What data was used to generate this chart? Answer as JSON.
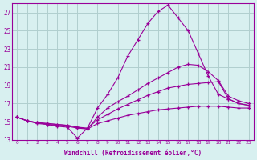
{
  "xlabel": "Windchill (Refroidissement éolien,°C)",
  "background_color": "#d8f0f0",
  "grid_color": "#b0cece",
  "line_color": "#990099",
  "xlim": [
    -0.5,
    23.5
  ],
  "ylim": [
    13,
    28
  ],
  "yticks": [
    13,
    15,
    17,
    19,
    21,
    23,
    25,
    27
  ],
  "xticks": [
    0,
    1,
    2,
    3,
    4,
    5,
    6,
    7,
    8,
    9,
    10,
    11,
    12,
    13,
    14,
    15,
    16,
    17,
    18,
    19,
    20,
    21,
    22,
    23
  ],
  "series": [
    {
      "x": [
        0,
        1,
        2,
        3,
        4,
        5,
        6,
        7,
        8,
        9,
        10,
        11,
        12,
        13,
        14,
        15,
        16,
        17,
        18,
        19,
        20,
        21,
        22,
        23
      ],
      "y": [
        15.5,
        15.1,
        14.8,
        14.7,
        14.5,
        14.4,
        13.2,
        14.3,
        16.5,
        18.0,
        19.8,
        22.2,
        24.0,
        25.8,
        27.1,
        27.8,
        26.4,
        25.0,
        22.5,
        20.0,
        18.0,
        17.5,
        17.0,
        16.8
      ]
    },
    {
      "x": [
        0,
        1,
        2,
        3,
        4,
        5,
        6,
        7,
        8,
        9,
        10,
        11,
        12,
        13,
        14,
        15,
        16,
        17,
        18,
        19,
        20,
        21,
        22,
        23
      ],
      "y": [
        15.5,
        15.1,
        14.9,
        14.7,
        14.6,
        14.5,
        14.3,
        14.2,
        15.5,
        16.5,
        17.2,
        17.8,
        18.5,
        19.2,
        19.8,
        20.4,
        21.0,
        21.3,
        21.2,
        20.5,
        19.5,
        17.8,
        17.3,
        17.0
      ]
    },
    {
      "x": [
        0,
        1,
        2,
        3,
        4,
        5,
        6,
        7,
        8,
        9,
        10,
        11,
        12,
        13,
        14,
        15,
        16,
        17,
        18,
        19,
        20,
        21,
        22,
        23
      ],
      "y": [
        15.5,
        15.1,
        14.9,
        14.8,
        14.7,
        14.6,
        14.4,
        14.3,
        15.2,
        15.8,
        16.4,
        16.9,
        17.4,
        17.9,
        18.3,
        18.7,
        18.9,
        19.1,
        19.2,
        19.3,
        19.4,
        17.5,
        17.0,
        16.8
      ]
    },
    {
      "x": [
        0,
        1,
        2,
        3,
        4,
        5,
        6,
        7,
        8,
        9,
        10,
        11,
        12,
        13,
        14,
        15,
        16,
        17,
        18,
        19,
        20,
        21,
        22,
        23
      ],
      "y": [
        15.5,
        15.1,
        14.9,
        14.8,
        14.7,
        14.6,
        14.4,
        14.2,
        14.8,
        15.1,
        15.4,
        15.7,
        15.9,
        16.1,
        16.3,
        16.4,
        16.5,
        16.6,
        16.7,
        16.7,
        16.7,
        16.6,
        16.5,
        16.5
      ]
    }
  ]
}
